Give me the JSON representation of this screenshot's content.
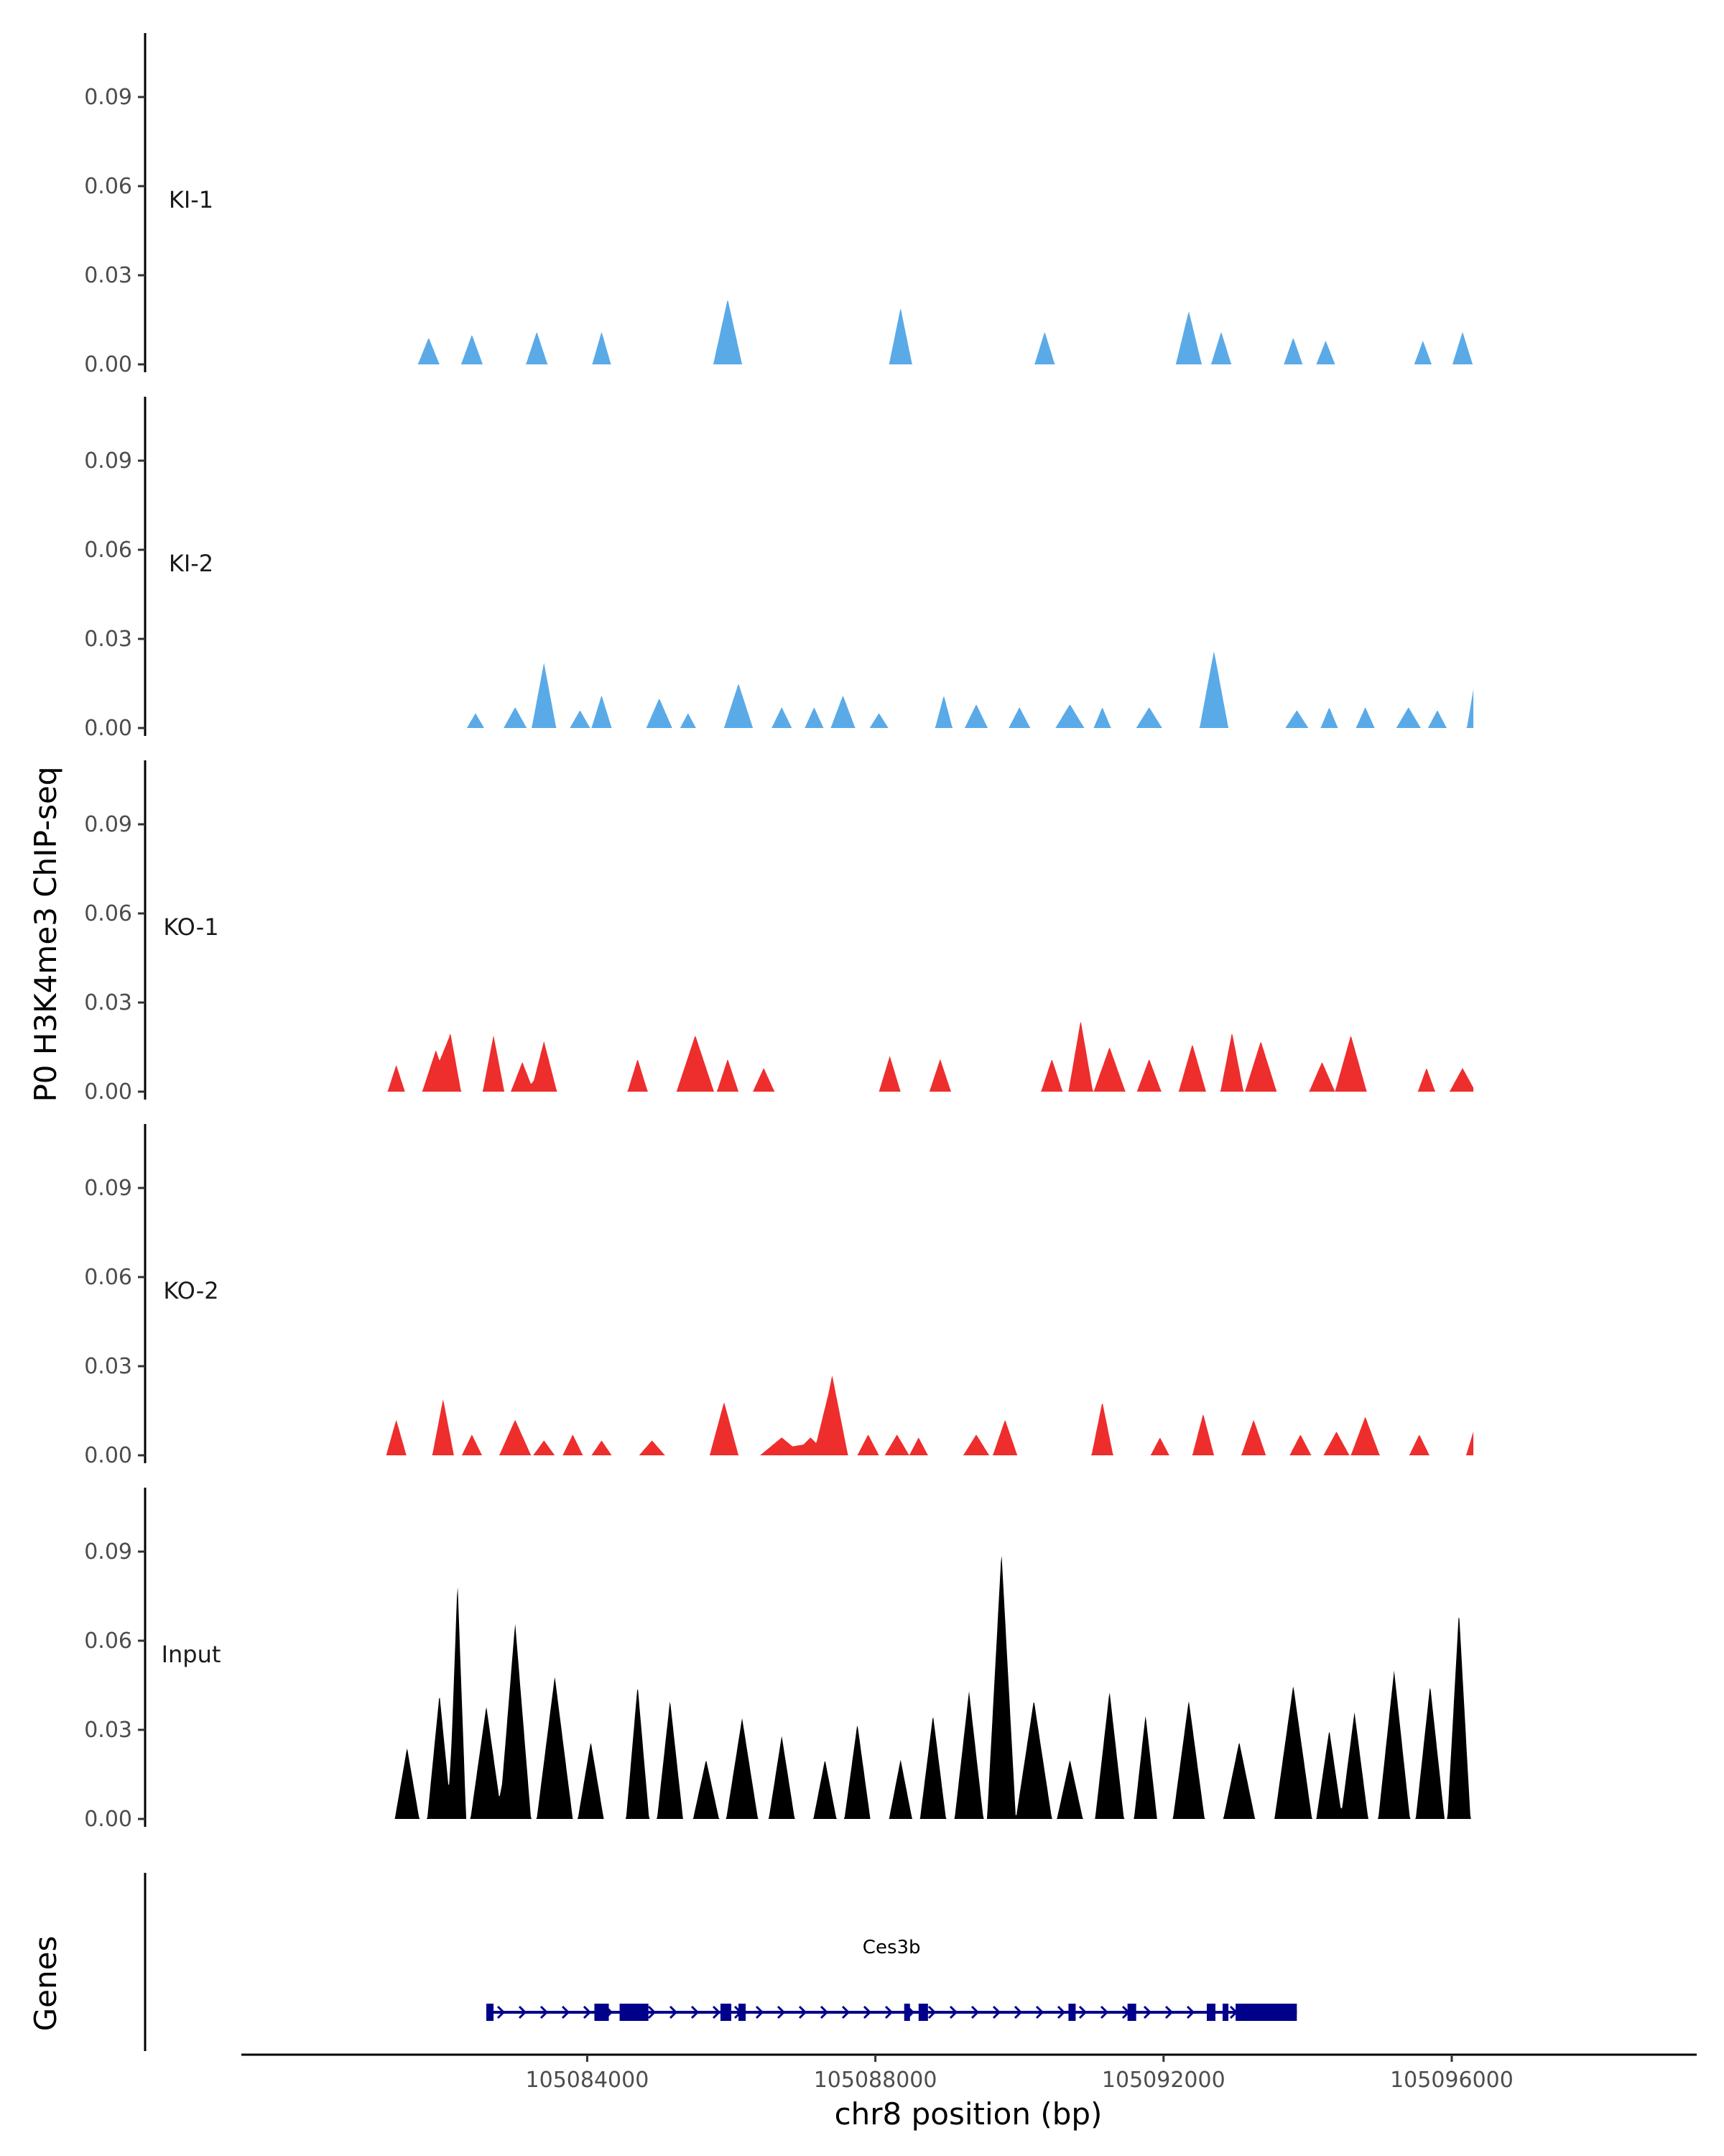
{
  "chart_data": {
    "type": "area",
    "title": "",
    "ylabel": "P0 H3K4me3 ChIP-seq",
    "xlabel": "chr8 position (bp)",
    "xlim": [
      105079200,
      105099400
    ],
    "ylim": [
      0,
      0.11
    ],
    "y_ticks": [
      "0.00",
      "0.03",
      "0.06",
      "0.09"
    ],
    "x_ticks": [
      {
        "value": 105084000,
        "label": "105084000"
      },
      {
        "value": 105088000,
        "label": "105088000"
      },
      {
        "value": 105092000,
        "label": "105092000"
      },
      {
        "value": 105096000,
        "label": "105096000"
      }
    ],
    "colors": {
      "KI": "#5aaae8",
      "KO": "#ee2d2d",
      "Input": "#000000",
      "gene": "#00008b"
    },
    "series": [
      {
        "name": "KI-1",
        "color": "#5aaae8",
        "peaks": [
          [
            105081800,
            0.009,
            150
          ],
          [
            105082400,
            0.01,
            150
          ],
          [
            105083300,
            0.011,
            150
          ],
          [
            105084200,
            0.011,
            130
          ],
          [
            105085950,
            0.022,
            200
          ],
          [
            105088350,
            0.019,
            160
          ],
          [
            105090350,
            0.011,
            140
          ],
          [
            105092350,
            0.018,
            180
          ],
          [
            105092800,
            0.011,
            140
          ],
          [
            105093800,
            0.009,
            130
          ],
          [
            105094250,
            0.008,
            130
          ],
          [
            105095600,
            0.008,
            120
          ],
          [
            105096150,
            0.011,
            140
          ]
        ]
      },
      {
        "name": "KI-2",
        "color": "#5aaae8",
        "peaks": [
          [
            105082450,
            0.005,
            120
          ],
          [
            105083000,
            0.007,
            160
          ],
          [
            105083400,
            0.022,
            170
          ],
          [
            105083900,
            0.006,
            140
          ],
          [
            105084200,
            0.011,
            140
          ],
          [
            105085000,
            0.01,
            180
          ],
          [
            105085400,
            0.005,
            110
          ],
          [
            105086100,
            0.015,
            200
          ],
          [
            105086700,
            0.007,
            140
          ],
          [
            105087150,
            0.007,
            130
          ],
          [
            105087550,
            0.011,
            170
          ],
          [
            105088050,
            0.005,
            130
          ],
          [
            105088950,
            0.011,
            120
          ],
          [
            105089400,
            0.008,
            160
          ],
          [
            105090000,
            0.007,
            150
          ],
          [
            105090700,
            0.008,
            200
          ],
          [
            105091150,
            0.007,
            120
          ],
          [
            105091800,
            0.007,
            180
          ],
          [
            105092700,
            0.026,
            200
          ],
          [
            105093850,
            0.006,
            160
          ],
          [
            105094300,
            0.007,
            120
          ],
          [
            105094800,
            0.007,
            130
          ],
          [
            105095400,
            0.007,
            170
          ],
          [
            105095800,
            0.006,
            130
          ],
          [
            105096300,
            0.013,
            90
          ]
        ]
      },
      {
        "name": "KO-1",
        "color": "#ee2d2d",
        "peaks": [
          [
            105081350,
            0.009,
            120
          ],
          [
            105081900,
            0.014,
            190
          ],
          [
            105082100,
            0.02,
            150
          ],
          [
            105082700,
            0.019,
            150
          ],
          [
            105083100,
            0.01,
            160
          ],
          [
            105083400,
            0.017,
            180
          ],
          [
            105084700,
            0.011,
            140
          ],
          [
            105085500,
            0.019,
            260
          ],
          [
            105085950,
            0.011,
            150
          ],
          [
            105086450,
            0.008,
            150
          ],
          [
            105088200,
            0.012,
            150
          ],
          [
            105088900,
            0.011,
            150
          ],
          [
            105090450,
            0.011,
            150
          ],
          [
            105090850,
            0.024,
            170
          ],
          [
            105091250,
            0.015,
            220
          ],
          [
            105091800,
            0.011,
            170
          ],
          [
            105092400,
            0.016,
            190
          ],
          [
            105092950,
            0.02,
            160
          ],
          [
            105093350,
            0.017,
            220
          ],
          [
            105094200,
            0.01,
            180
          ],
          [
            105094600,
            0.019,
            220
          ],
          [
            105095650,
            0.008,
            120
          ],
          [
            105096150,
            0.008,
            180
          ]
        ]
      },
      {
        "name": "KO-2",
        "color": "#ee2d2d",
        "peaks": [
          [
            105081350,
            0.012,
            140
          ],
          [
            105082000,
            0.019,
            150
          ],
          [
            105082400,
            0.007,
            140
          ],
          [
            105083000,
            0.012,
            220
          ],
          [
            105083400,
            0.005,
            150
          ],
          [
            105083800,
            0.007,
            140
          ],
          [
            105084200,
            0.005,
            140
          ],
          [
            105084900,
            0.005,
            180
          ],
          [
            105085900,
            0.018,
            200
          ],
          [
            105086700,
            0.006,
            300
          ],
          [
            105087100,
            0.006,
            250
          ],
          [
            105087400,
            0.027,
            220
          ],
          [
            105087900,
            0.007,
            150
          ],
          [
            105088300,
            0.007,
            170
          ],
          [
            105088600,
            0.006,
            130
          ],
          [
            105089400,
            0.007,
            180
          ],
          [
            105089800,
            0.012,
            170
          ],
          [
            105091150,
            0.018,
            150
          ],
          [
            105091950,
            0.006,
            130
          ],
          [
            105092550,
            0.014,
            150
          ],
          [
            105093250,
            0.012,
            170
          ],
          [
            105093900,
            0.007,
            150
          ],
          [
            105094400,
            0.008,
            180
          ],
          [
            105094800,
            0.013,
            200
          ],
          [
            105095550,
            0.007,
            140
          ],
          [
            105096300,
            0.008,
            100
          ]
        ]
      },
      {
        "name": "Input",
        "color": "#000000",
        "peaks": [
          [
            105081500,
            0.024,
            170
          ],
          [
            105081950,
            0.042,
            170
          ],
          [
            105082200,
            0.08,
            120
          ],
          [
            105082600,
            0.038,
            220
          ],
          [
            105083000,
            0.066,
            220
          ],
          [
            105083550,
            0.048,
            250
          ],
          [
            105084050,
            0.026,
            180
          ],
          [
            105084700,
            0.045,
            160
          ],
          [
            105085150,
            0.04,
            180
          ],
          [
            105085650,
            0.02,
            180
          ],
          [
            105086150,
            0.034,
            220
          ],
          [
            105086700,
            0.028,
            180
          ],
          [
            105087300,
            0.02,
            160
          ],
          [
            105087750,
            0.032,
            180
          ],
          [
            105088350,
            0.02,
            160
          ],
          [
            105088800,
            0.035,
            180
          ],
          [
            105089300,
            0.043,
            200
          ],
          [
            105089750,
            0.09,
            200
          ],
          [
            105090200,
            0.04,
            250
          ],
          [
            105090700,
            0.02,
            180
          ],
          [
            105091250,
            0.043,
            200
          ],
          [
            105091750,
            0.035,
            160
          ],
          [
            105092350,
            0.04,
            220
          ],
          [
            105093050,
            0.026,
            220
          ],
          [
            105093800,
            0.045,
            260
          ],
          [
            105094300,
            0.03,
            180
          ],
          [
            105094650,
            0.036,
            190
          ],
          [
            105095200,
            0.05,
            220
          ],
          [
            105095700,
            0.045,
            200
          ],
          [
            105096100,
            0.07,
            160
          ]
        ]
      }
    ],
    "gene": {
      "name": "Ces3b",
      "track_label": "Genes",
      "start": 105082600,
      "end": 105093850,
      "exons": [
        [
          105082600,
          105082700
        ],
        [
          105084100,
          105084300
        ],
        [
          105084450,
          105084850
        ],
        [
          105085850,
          105086000
        ],
        [
          105086100,
          105086200
        ],
        [
          105088400,
          105088480
        ],
        [
          105088600,
          105088730
        ],
        [
          105090680,
          105090780
        ],
        [
          105091500,
          105091620
        ],
        [
          105092600,
          105092720
        ],
        [
          105092820,
          105092900
        ],
        [
          105093000,
          105093850
        ]
      ]
    }
  }
}
